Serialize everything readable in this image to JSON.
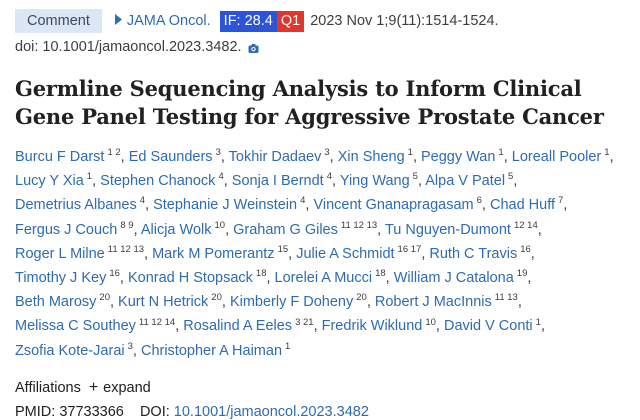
{
  "citation": {
    "comment_label": "Comment",
    "journal": "JAMA Oncol.",
    "impact_factor": "IF: 28.4",
    "quartile": "Q1",
    "date_info": "2023 Nov 1;9(11):1514-1524.",
    "doi_text": "doi: 10.1001/jamaoncol.2023.3482."
  },
  "title_lines": [
    "Germline Sequencing Analysis to Inform Clinical",
    "Gene Panel Testing for Aggressive Prostate Cancer"
  ],
  "authors": [
    {
      "name": "Burcu F Darst",
      "aff": "1 2"
    },
    {
      "name": "Ed Saunders",
      "aff": "3"
    },
    {
      "name": "Tokhir Dadaev",
      "aff": "3"
    },
    {
      "name": "Xin Sheng",
      "aff": "1"
    },
    {
      "name": "Peggy Wan",
      "aff": "1"
    },
    {
      "name": "Loreall Pooler",
      "aff": "1"
    },
    {
      "name": "Lucy Y Xia",
      "aff": "1"
    },
    {
      "name": "Stephen Chanock",
      "aff": "4"
    },
    {
      "name": "Sonja I Berndt",
      "aff": "4"
    },
    {
      "name": "Ying Wang",
      "aff": "5"
    },
    {
      "name": "Alpa V Patel",
      "aff": "5"
    },
    {
      "name": "Demetrius Albanes",
      "aff": "4"
    },
    {
      "name": "Stephanie J Weinstein",
      "aff": "4"
    },
    {
      "name": "Vincent Gnanapragasam",
      "aff": "6"
    },
    {
      "name": "Chad Huff",
      "aff": "7"
    },
    {
      "name": "Fergus J Couch",
      "aff": "8 9"
    },
    {
      "name": "Alicja Wolk",
      "aff": "10"
    },
    {
      "name": "Graham G Giles",
      "aff": "11 12 13"
    },
    {
      "name": "Tu Nguyen-Dumont",
      "aff": "12 14"
    },
    {
      "name": "Roger L Milne",
      "aff": "11 12 13"
    },
    {
      "name": "Mark M Pomerantz",
      "aff": "15"
    },
    {
      "name": "Julie A Schmidt",
      "aff": "16 17"
    },
    {
      "name": "Ruth C Travis",
      "aff": "16"
    },
    {
      "name": "Timothy J Key",
      "aff": "16"
    },
    {
      "name": "Konrad H Stopsack",
      "aff": "18"
    },
    {
      "name": "Lorelei A Mucci",
      "aff": "18"
    },
    {
      "name": "William J Catalona",
      "aff": "19"
    },
    {
      "name": "Beth Marosy",
      "aff": "20"
    },
    {
      "name": "Kurt N Hetrick",
      "aff": "20"
    },
    {
      "name": "Kimberly F Doheny",
      "aff": "20"
    },
    {
      "name": "Robert J MacInnis",
      "aff": "11 13"
    },
    {
      "name": "Melissa C Southey",
      "aff": "11 12 14"
    },
    {
      "name": "Rosalind A Eeles",
      "aff": "3 21"
    },
    {
      "name": "Fredrik Wiklund",
      "aff": "10"
    },
    {
      "name": "David V Conti",
      "aff": "1"
    },
    {
      "name": "Zsofia Kote-Jarai",
      "aff": "3"
    },
    {
      "name": "Christopher A Haiman",
      "aff": "1"
    }
  ],
  "affiliations": {
    "label": "Affiliations",
    "expand_label": "expand"
  },
  "ids": {
    "pmid_label": "PMID:",
    "pmid": "37733366",
    "doi_label": "DOI:",
    "doi": "10.1001/jamaoncol.2023.3482"
  },
  "colors": {
    "link": "#2e6bb0",
    "if_badge": "#2b55d6",
    "q_badge": "#e0362d",
    "comment_badge_bg": "#dce6f5"
  },
  "icons": {
    "cite_arrow": "chevron-right-icon",
    "doi_camera": "camera-icon",
    "expand_plus": "plus-icon"
  }
}
